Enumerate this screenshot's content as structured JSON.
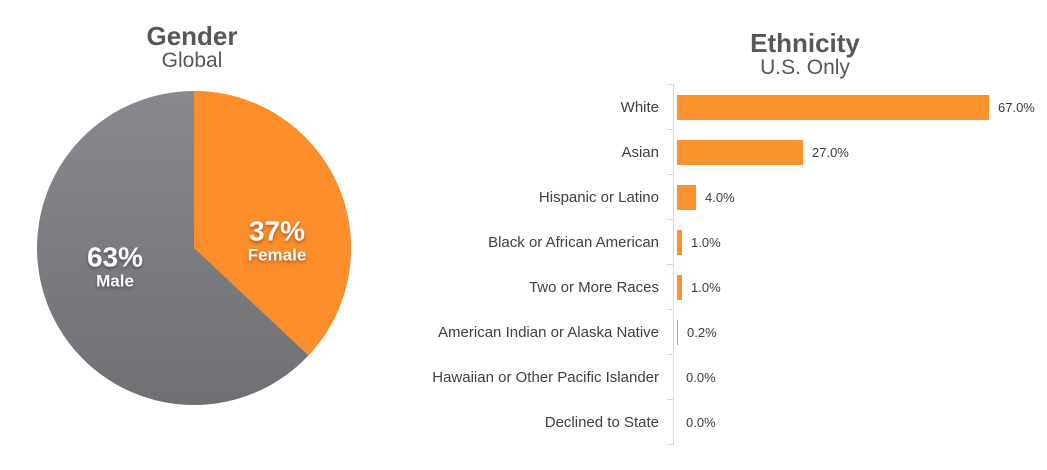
{
  "chart_data": [
    {
      "type": "pie",
      "title": "Gender",
      "subtitle": "Global",
      "start_angle_deg": 0,
      "direction": "clockwise",
      "label_text_color": "#FFFFFF",
      "title_color": "#56575B",
      "slices": [
        {
          "label": "Female",
          "value": 37,
          "pct_label": "37%",
          "color": "#FB8D2B"
        },
        {
          "label": "Male",
          "value": 63,
          "pct_label": "63%",
          "color_top": "#87898E",
          "color_bottom": "#6F7073"
        }
      ]
    },
    {
      "type": "bar",
      "orientation": "horizontal",
      "title": "Ethnicity",
      "subtitle": "U.S. Only",
      "bar_color": "#FA932D",
      "axis_color": "#D9D9D9",
      "label_color": "#3F4042",
      "value_label_color": "#3C3C3C",
      "xlim": [
        0,
        67
      ],
      "grid": false,
      "legend": false,
      "rows": [
        {
          "label": "White",
          "value": 67,
          "value_label": "67.0%"
        },
        {
          "label": "Asian",
          "value": 27,
          "value_label": "27.0%"
        },
        {
          "label": "Hispanic or Latino",
          "value": 4,
          "value_label": "4.0%"
        },
        {
          "label": "Black or African American",
          "value": 1,
          "value_label": "1.0%"
        },
        {
          "label": "Two or More Races",
          "value": 1,
          "value_label": "1.0%"
        },
        {
          "label": "American Indian or Alaska Native",
          "value": 0.2,
          "value_label": "0.2%"
        },
        {
          "label": "Hawaiian or Other Pacific Islander",
          "value": 0,
          "value_label": "0.0%"
        },
        {
          "label": "Declined to State",
          "value": 0,
          "value_label": "0.0%"
        }
      ]
    }
  ]
}
